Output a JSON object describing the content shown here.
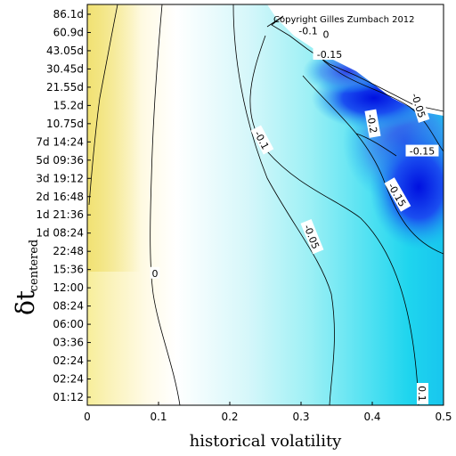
{
  "chart_data": {
    "type": "heatmap",
    "title": "",
    "xlabel": "historical volatility",
    "ylabel_main": "δt",
    "ylabel_sub": "centered",
    "xlim": [
      0,
      0.5
    ],
    "x_ticks": [
      "0",
      "0.1",
      "0.2",
      "0.3",
      "0.4",
      "0.5"
    ],
    "x_tick_values": [
      0,
      0.1,
      0.2,
      0.3,
      0.4,
      0.5
    ],
    "y_ticks": [
      "01:12",
      "02:24",
      "02:24",
      "03:36",
      "06:00",
      "08:24",
      "12:00",
      "15:36",
      "22:48",
      "1d 08:24",
      "1d 21:36",
      "2d 16:48",
      "3d 19:12",
      "5d 09:36",
      "7d 14:24",
      "10.75d",
      "15.2d",
      "21.55d",
      "30.45d",
      "43.05d",
      "60.9d",
      "86.1d"
    ],
    "annotation": "Copyright Gilles Zumbach 2012",
    "grid": false,
    "colorscale": "yellow (positive) to white (0) to cyan to blue (negative)",
    "contour_levels": [
      0,
      -0.05,
      -0.1,
      -0.15,
      -0.2,
      0.1
    ],
    "contour_labels": [
      {
        "text": "0",
        "x": 0.095,
        "y_index": 6.8,
        "angle": 0
      },
      {
        "text": "-0.05",
        "x": 0.315,
        "y_index": 8.8,
        "angle": 68
      },
      {
        "text": "-0.1",
        "x": 0.245,
        "y_index": 14.1,
        "angle": 62
      },
      {
        "text": "-0.15",
        "x": 0.435,
        "y_index": 11.1,
        "angle": 60
      },
      {
        "text": "-0.15",
        "x": 0.34,
        "y_index": 18.8,
        "angle": 0
      },
      {
        "text": "-0.1",
        "x": 0.31,
        "y_index": 20.1,
        "angle": 0
      },
      {
        "text": "0",
        "x": 0.335,
        "y_index": 19.9,
        "angle": 0
      },
      {
        "text": "-0.2",
        "x": 0.4,
        "y_index": 15.0,
        "angle": 80
      },
      {
        "text": "-0.15",
        "x": 0.47,
        "y_index": 13.5,
        "angle": 0
      },
      {
        "text": "-0.05",
        "x": 0.465,
        "y_index": 16.0,
        "angle": 72
      },
      {
        "text": "0.1",
        "x": 0.47,
        "y_index": 0.2,
        "angle": 90
      }
    ]
  }
}
